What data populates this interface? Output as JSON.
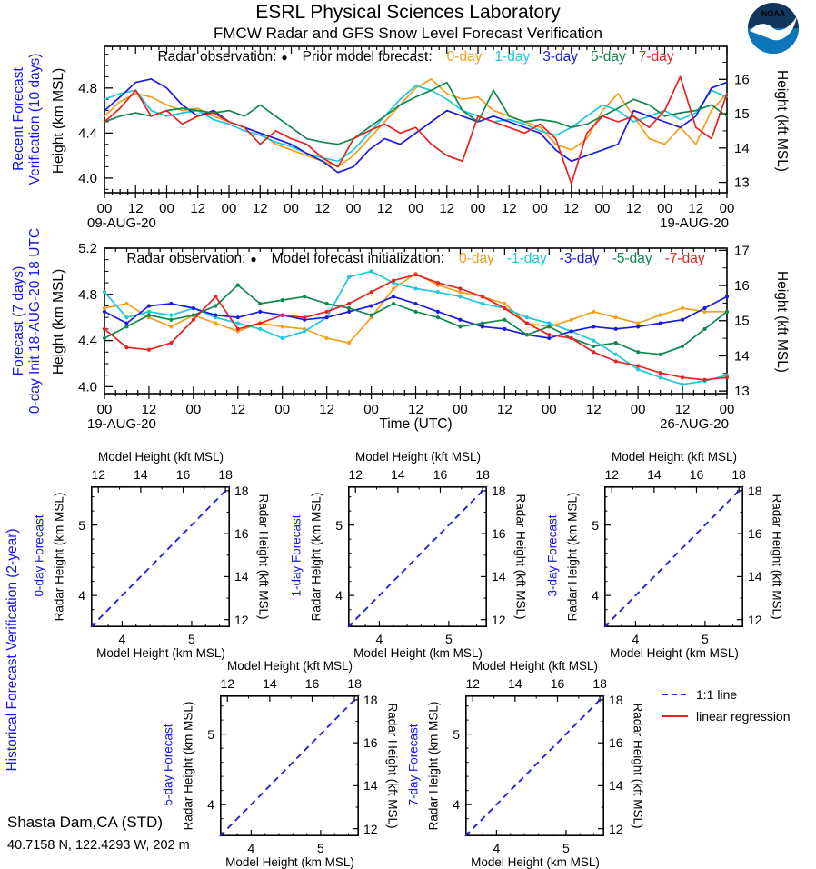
{
  "header": {
    "title": "ESRL Physical Sciences Laboratory",
    "subtitle": "FMCW Radar and GFS Snow Level Forecast Verification",
    "noaa_logo": {
      "text": "NOAA",
      "navy": "#12365c",
      "azure": "#0d76ba"
    }
  },
  "station": {
    "name": "Shasta Dam,CA (STD)",
    "coords": "40.7158 N, 122.4293 W, 202 m"
  },
  "colors": {
    "label_blue": "#1414f0",
    "day0": "#f2a01e",
    "day1": "#1ec7d9",
    "day3": "#1b1be0",
    "day5": "#11884f",
    "day7": "#e62222",
    "one_to_one": "#2525dd",
    "regression": "#e62222"
  },
  "chart_data": [
    {
      "id": "recent",
      "type": "line",
      "side_label_line1": "Recent Forecast",
      "side_label_line2": "Verification (10 days)",
      "ylabel": "Height (km MSL)",
      "ylabel_right": "Height (kft MSL)",
      "ylim": [
        3.87,
        5.17
      ],
      "yticks": [
        4.0,
        4.4,
        4.8
      ],
      "yticks_right_kft": [
        13,
        14,
        15,
        16
      ],
      "hours": 240,
      "points_step_h": 6,
      "xticks": [
        "00",
        "12",
        "00",
        "12",
        "00",
        "12",
        "00",
        "12",
        "00",
        "12",
        "00",
        "12",
        "00",
        "12",
        "00",
        "12",
        "00",
        "12",
        "00",
        "12",
        "00"
      ],
      "date_left": "09-AUG-20",
      "date_right": "19-AUG-20",
      "legend": {
        "obs_label": "Radar observation:",
        "obs_marker": "●",
        "model_label": "Prior model forecast:",
        "entries": [
          {
            "label": "0-day",
            "color_key": "day0"
          },
          {
            "label": "1-day",
            "color_key": "day1"
          },
          {
            "label": "3-day",
            "color_key": "day3"
          },
          {
            "label": "5-day",
            "color_key": "day5"
          },
          {
            "label": "7-day",
            "color_key": "day7"
          }
        ]
      },
      "series": [
        {
          "name": "0-day",
          "color_key": "day0",
          "markers": false,
          "values": [
            4.55,
            4.68,
            4.75,
            4.72,
            4.65,
            4.6,
            4.62,
            4.55,
            4.5,
            4.45,
            4.4,
            4.3,
            4.25,
            4.2,
            4.15,
            4.1,
            4.2,
            4.35,
            4.5,
            4.65,
            4.8,
            4.88,
            4.75,
            4.7,
            4.72,
            4.6,
            4.55,
            4.5,
            4.45,
            4.3,
            4.25,
            4.35,
            4.6,
            4.75,
            4.55,
            4.35,
            4.3,
            4.45,
            4.3,
            4.6,
            4.75
          ]
        },
        {
          "name": "1-day",
          "color_key": "day1",
          "markers": false,
          "values": [
            4.7,
            4.75,
            4.78,
            4.6,
            4.55,
            4.58,
            4.6,
            4.52,
            4.48,
            4.42,
            4.38,
            4.32,
            4.28,
            4.22,
            4.18,
            4.15,
            4.25,
            4.4,
            4.55,
            4.7,
            4.82,
            4.78,
            4.7,
            4.6,
            4.55,
            4.5,
            4.52,
            4.48,
            4.42,
            4.38,
            4.45,
            4.55,
            4.65,
            4.6,
            4.5,
            4.55,
            4.6,
            4.52,
            4.58,
            4.78,
            4.72
          ]
        },
        {
          "name": "3-day",
          "color_key": "day3",
          "markers": false,
          "values": [
            4.6,
            4.72,
            4.85,
            4.88,
            4.8,
            4.65,
            4.55,
            4.6,
            4.5,
            4.45,
            4.4,
            4.35,
            4.3,
            4.22,
            4.15,
            4.05,
            4.1,
            4.25,
            4.35,
            4.3,
            4.4,
            4.5,
            4.6,
            4.55,
            4.5,
            4.55,
            4.5,
            4.45,
            4.4,
            4.25,
            4.15,
            4.2,
            4.25,
            4.3,
            4.6,
            4.55,
            4.5,
            4.45,
            4.55,
            4.8,
            4.85
          ]
        },
        {
          "name": "5-day",
          "color_key": "day5",
          "markers": false,
          "values": [
            4.5,
            4.55,
            4.58,
            4.55,
            4.6,
            4.62,
            4.6,
            4.58,
            4.6,
            4.55,
            4.65,
            4.55,
            4.45,
            4.35,
            4.32,
            4.3,
            4.35,
            4.45,
            4.55,
            4.65,
            4.72,
            4.78,
            4.85,
            4.6,
            4.5,
            4.78,
            4.55,
            4.5,
            4.52,
            4.5,
            4.45,
            4.48,
            4.55,
            4.62,
            4.7,
            4.65,
            4.55,
            4.58,
            4.6,
            4.65,
            4.55
          ]
        },
        {
          "name": "7-day",
          "color_key": "day7",
          "markers": false,
          "values": [
            4.5,
            4.62,
            4.78,
            4.55,
            4.6,
            4.48,
            4.55,
            4.58,
            4.5,
            4.45,
            4.3,
            4.42,
            4.35,
            4.3,
            4.18,
            4.1,
            4.35,
            4.42,
            4.48,
            4.4,
            4.45,
            4.3,
            4.2,
            4.15,
            4.55,
            4.5,
            4.45,
            4.4,
            4.48,
            4.35,
            3.95,
            4.4,
            4.55,
            4.5,
            4.55,
            4.45,
            4.6,
            4.9,
            4.45,
            4.35,
            4.75
          ]
        }
      ]
    },
    {
      "id": "forecast",
      "type": "line",
      "side_label_line1": "Forecast (7 days)",
      "side_label_line2": "0-day Init 18-AUG-20 18 UTC",
      "ylabel": "Height (km MSL)",
      "ylabel_right": "Height (kft MSL)",
      "xlabel": "Time (UTC)",
      "ylim": [
        3.94,
        5.2
      ],
      "yticks": [
        4.0,
        4.4,
        4.8,
        5.2
      ],
      "yticks_right_kft": [
        13,
        14,
        15,
        16,
        17
      ],
      "hours": 168,
      "points_step_h": 6,
      "xticks": [
        "00",
        "12",
        "00",
        "12",
        "00",
        "12",
        "00",
        "12",
        "00",
        "12",
        "00",
        "12",
        "00",
        "12",
        "00"
      ],
      "date_left": "19-AUG-20",
      "date_right": "26-AUG-20",
      "legend": {
        "obs_label": "Radar observation:",
        "obs_marker": "●",
        "model_label": "Model forecast initialization:",
        "entries": [
          {
            "label": "0-day",
            "color_key": "day0"
          },
          {
            "label": "-1-day",
            "color_key": "day1"
          },
          {
            "label": "-3-day",
            "color_key": "day3"
          },
          {
            "label": "-5-day",
            "color_key": "day5"
          },
          {
            "label": "-7-day",
            "color_key": "day7"
          }
        ]
      },
      "series": [
        {
          "name": "0-day",
          "color_key": "day0",
          "markers": true,
          "values": [
            4.68,
            4.72,
            4.6,
            4.52,
            4.62,
            4.55,
            4.48,
            4.55,
            4.52,
            4.5,
            4.42,
            4.38,
            4.6,
            4.85,
            4.98,
            4.88,
            4.82,
            4.78,
            4.72,
            4.55,
            4.52,
            4.58,
            4.65,
            4.6,
            4.55,
            4.62,
            4.68,
            4.65,
            4.65
          ]
        },
        {
          "name": "-1-day",
          "color_key": "day1",
          "markers": true,
          "values": [
            4.82,
            4.6,
            4.65,
            4.62,
            4.68,
            4.6,
            4.55,
            4.5,
            4.42,
            4.48,
            4.6,
            4.95,
            5.0,
            4.9,
            4.85,
            4.82,
            4.78,
            4.72,
            4.68,
            4.6,
            4.55,
            4.48,
            4.4,
            4.28,
            4.15,
            4.08,
            4.02,
            4.05,
            4.1
          ]
        },
        {
          "name": "-3-day",
          "color_key": "day3",
          "markers": true,
          "values": [
            4.65,
            4.55,
            4.7,
            4.72,
            4.68,
            4.62,
            4.6,
            4.65,
            4.62,
            4.58,
            4.6,
            4.65,
            4.7,
            4.78,
            4.72,
            4.65,
            4.58,
            4.52,
            4.5,
            4.45,
            4.42,
            4.48,
            4.52,
            4.5,
            4.52,
            4.55,
            4.58,
            4.68,
            4.78
          ]
        },
        {
          "name": "-5-day",
          "color_key": "day5",
          "markers": true,
          "values": [
            4.42,
            4.52,
            4.62,
            4.58,
            4.62,
            4.7,
            4.88,
            4.72,
            4.75,
            4.78,
            4.72,
            4.68,
            4.62,
            4.72,
            4.65,
            4.6,
            4.52,
            4.55,
            4.58,
            4.45,
            4.52,
            4.42,
            4.35,
            4.38,
            4.3,
            4.28,
            4.35,
            4.5,
            4.65
          ]
        },
        {
          "name": "-7-day",
          "color_key": "day7",
          "markers": true,
          "values": [
            4.5,
            4.34,
            4.32,
            4.38,
            4.58,
            4.78,
            4.5,
            4.55,
            4.62,
            4.6,
            4.65,
            4.72,
            4.82,
            4.92,
            4.97,
            4.9,
            4.85,
            4.78,
            4.68,
            4.55,
            4.45,
            4.42,
            4.3,
            4.22,
            4.18,
            4.12,
            4.08,
            4.06,
            4.08
          ]
        }
      ]
    },
    {
      "id": "historical",
      "type": "scatter",
      "side_label": "Historical Forecast Verification (2-year)",
      "axis_top": "Model Height (kft MSL)",
      "axis_bottom": "Model Height (km MSL)",
      "axis_left": "Radar Height (km MSL)",
      "axis_right": "Radar Height (kft MSL)",
      "lim_km": [
        3.55,
        5.55
      ],
      "km_ticks": [
        4,
        5
      ],
      "kft_ticks": [
        12,
        14,
        16,
        18
      ],
      "kft_minor_ticks": [
        13,
        15,
        17
      ],
      "one_to_one_line": true,
      "panels": [
        {
          "label": "0-day Forecast"
        },
        {
          "label": "1-day Forecast"
        },
        {
          "label": "3-day Forecast"
        },
        {
          "label": "5-day Forecast"
        },
        {
          "label": "7-day Forecast"
        }
      ],
      "legend": [
        {
          "label": "1:1 line",
          "style": "dashed",
          "color_key": "one_to_one"
        },
        {
          "label": "linear regression",
          "style": "solid",
          "color_key": "regression"
        }
      ]
    }
  ]
}
